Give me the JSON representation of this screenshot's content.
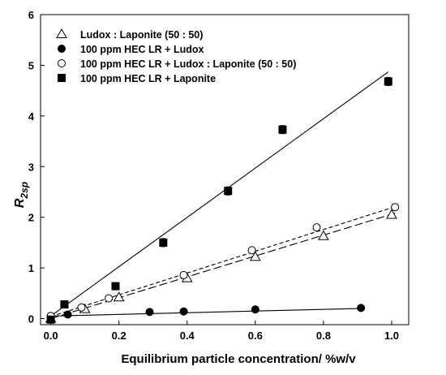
{
  "chart_data": {
    "type": "scatter",
    "xlabel": "Equilibrium particle concentration/ %w/v",
    "ylabel_main": "R",
    "ylabel_sub": "2sp",
    "xlim": [
      -0.03,
      1.05
    ],
    "ylim": [
      -0.12,
      6
    ],
    "xticks": [
      0.0,
      0.2,
      0.4,
      0.6,
      0.8,
      1.0
    ],
    "xtick_labels": [
      "0.0",
      "0.2",
      "0.4",
      "0.6",
      "0.8",
      "1.0"
    ],
    "yticks": [
      0,
      1,
      2,
      3,
      4,
      5,
      6
    ],
    "ytick_labels": [
      "0",
      "1",
      "2",
      "3",
      "4",
      "5",
      "6"
    ],
    "legend_position": "top-left",
    "grid": false,
    "series": [
      {
        "name": "Ludox : Laponite (50 : 50)",
        "marker": "open-triangle",
        "color": "#000000",
        "x": [
          0.0,
          0.1,
          0.2,
          0.4,
          0.6,
          0.8,
          1.0
        ],
        "y": [
          0.0,
          0.19,
          0.42,
          0.8,
          1.22,
          1.63,
          2.05
        ],
        "fit": {
          "style": "long-dash",
          "x": [
            0.0,
            1.01
          ],
          "y": [
            0.0,
            2.08
          ]
        }
      },
      {
        "name": "100 ppm HEC LR + Ludox",
        "marker": "filled-circle",
        "color": "#000000",
        "x": [
          0.0,
          0.05,
          0.29,
          0.39,
          0.6,
          0.91
        ],
        "y": [
          0.05,
          0.08,
          0.13,
          0.14,
          0.18,
          0.21
        ],
        "fit": {
          "style": "solid",
          "x": [
            0.0,
            0.91
          ],
          "y": [
            0.05,
            0.2
          ]
        }
      },
      {
        "name": "100 ppm HEC LR + Ludox : Laponite (50 : 50)",
        "marker": "open-circle",
        "color": "#000000",
        "x": [
          0.0,
          0.09,
          0.17,
          0.39,
          0.59,
          0.78,
          1.01
        ],
        "y": [
          0.05,
          0.22,
          0.4,
          0.86,
          1.35,
          1.8,
          2.2
        ],
        "fit": {
          "style": "short-dash",
          "x": [
            0.0,
            1.02
          ],
          "y": [
            0.04,
            2.23
          ]
        }
      },
      {
        "name": "100 ppm HEC LR + Laponite",
        "marker": "filled-square",
        "color": "#000000",
        "x": [
          0.0,
          0.04,
          0.19,
          0.33,
          0.52,
          0.68,
          0.99
        ],
        "y": [
          -0.02,
          0.28,
          0.64,
          1.5,
          2.52,
          3.73,
          4.68
        ],
        "error_y": [
          0.05,
          0.06,
          0.06,
          0.08,
          0.08,
          0.08,
          0.08
        ],
        "fit": {
          "style": "solid",
          "x": [
            0.0,
            0.99
          ],
          "y": [
            0.05,
            4.87
          ]
        }
      }
    ]
  }
}
